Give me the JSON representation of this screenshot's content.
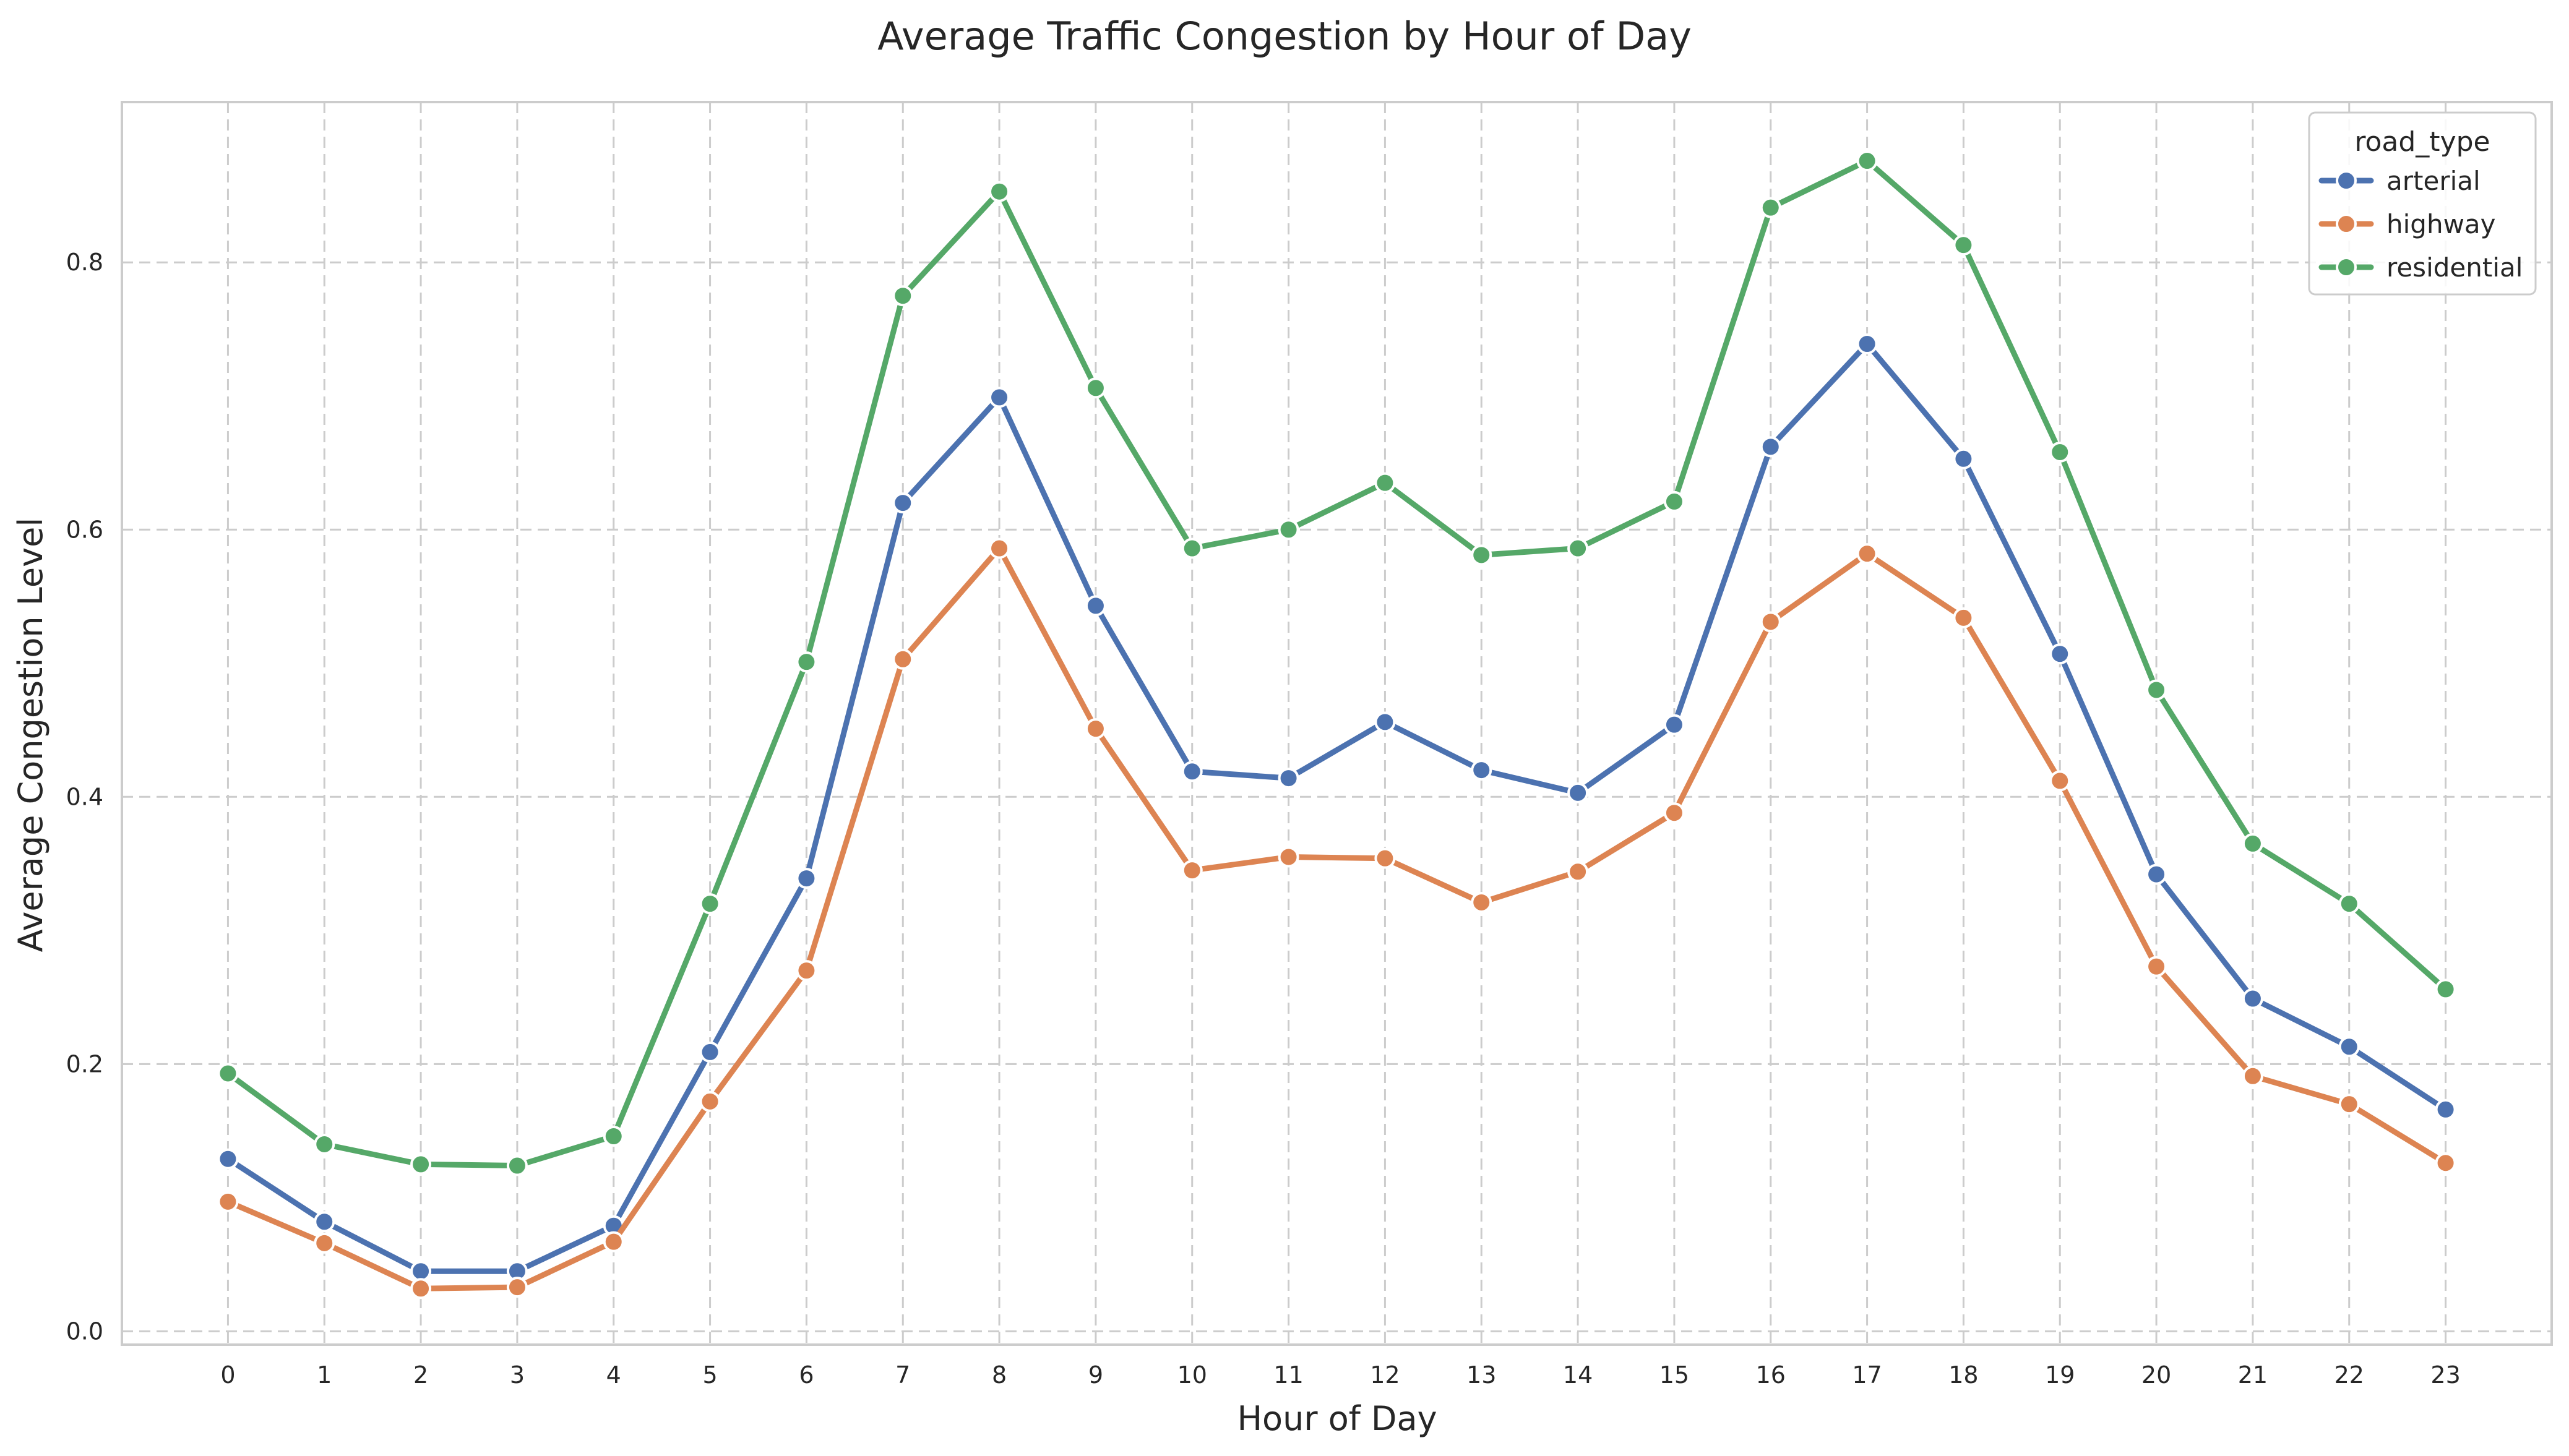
{
  "chart_data": {
    "type": "line",
    "title": "Average Traffic Congestion by Hour of Day",
    "xlabel": "Hour of Day",
    "ylabel": "Average Congestion Level",
    "x": [
      0,
      1,
      2,
      3,
      4,
      5,
      6,
      7,
      8,
      9,
      10,
      11,
      12,
      13,
      14,
      15,
      16,
      17,
      18,
      19,
      20,
      21,
      22,
      23
    ],
    "x_tick_labels": [
      "0",
      "1",
      "2",
      "3",
      "4",
      "5",
      "6",
      "7",
      "8",
      "9",
      "10",
      "11",
      "12",
      "13",
      "14",
      "15",
      "16",
      "17",
      "18",
      "19",
      "20",
      "21",
      "22",
      "23"
    ],
    "y_ticks": [
      0.0,
      0.2,
      0.4,
      0.6,
      0.8
    ],
    "y_tick_labels": [
      "0.0",
      "0.2",
      "0.4",
      "0.6",
      "0.8"
    ],
    "xlim": [
      -1.1,
      24.1
    ],
    "ylim": [
      -0.01,
      0.92
    ],
    "grid": true,
    "legend": {
      "title": "road_type",
      "placement": "top-right"
    },
    "series": [
      {
        "name": "arterial",
        "color": "#4c72b0",
        "values": [
          0.129,
          0.082,
          0.045,
          0.045,
          0.079,
          0.209,
          0.339,
          0.62,
          0.699,
          0.543,
          0.419,
          0.414,
          0.456,
          0.42,
          0.403,
          0.454,
          0.662,
          0.739,
          0.653,
          0.507,
          0.342,
          0.249,
          0.213,
          0.166
        ]
      },
      {
        "name": "highway",
        "color": "#dd8452",
        "values": [
          0.097,
          0.066,
          0.032,
          0.033,
          0.067,
          0.172,
          0.27,
          0.503,
          0.586,
          0.451,
          0.345,
          0.355,
          0.354,
          0.321,
          0.344,
          0.388,
          0.531,
          0.582,
          0.534,
          0.412,
          0.273,
          0.191,
          0.17,
          0.126
        ]
      },
      {
        "name": "residential",
        "color": "#55a868",
        "values": [
          0.193,
          0.14,
          0.125,
          0.124,
          0.146,
          0.32,
          0.501,
          0.775,
          0.853,
          0.706,
          0.586,
          0.6,
          0.635,
          0.581,
          0.586,
          0.621,
          0.841,
          0.876,
          0.813,
          0.658,
          0.48,
          0.365,
          0.32,
          0.256
        ]
      }
    ]
  }
}
